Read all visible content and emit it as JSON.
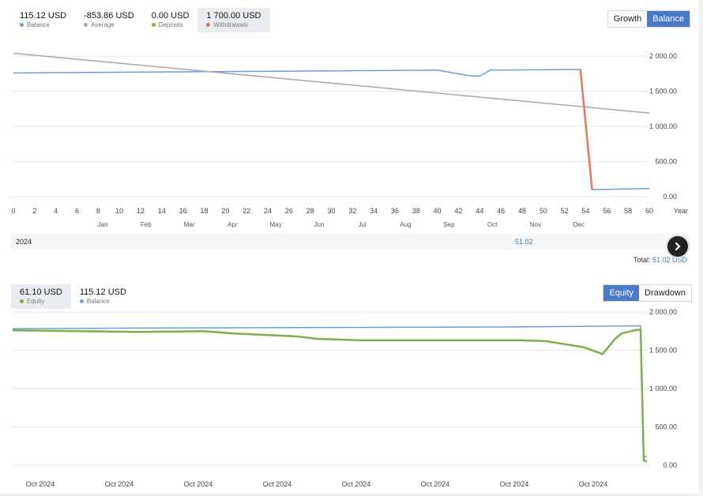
{
  "top_chart": {
    "legend": [
      {
        "value": "115.12 USD",
        "label": "Balance",
        "color": "#6a9edb",
        "active": false
      },
      {
        "value": "-853.86 USD",
        "label": "Average",
        "color": "#a8a8a8",
        "active": false
      },
      {
        "value": "0.00 USD",
        "label": "Deposits",
        "color": "#7ab04c",
        "active": false
      },
      {
        "value": "1 700.00 USD",
        "label": "Withdrawals",
        "color": "#e07a5f",
        "active": true
      }
    ],
    "toggle": {
      "growth": "Growth",
      "balance": "Balance",
      "selected": "Balance"
    },
    "year_label": "Year",
    "year_row": {
      "year": "2024",
      "value": "51.02"
    },
    "total": {
      "label": "Total:",
      "value": "51.02 USD"
    }
  },
  "bottom_chart": {
    "legend": [
      {
        "value": "61.10 USD",
        "label": "Equity",
        "color": "#7ab04c",
        "active": true
      },
      {
        "value": "115.12 USD",
        "label": "Balance",
        "color": "#6a9edb",
        "active": false
      }
    ],
    "toggle": {
      "equity": "Equity",
      "drawdown": "Drawdown",
      "selected": "Equity"
    }
  },
  "chart_data": [
    {
      "type": "line",
      "x_ticks": [
        "0",
        "2",
        "4",
        "6",
        "8",
        "10",
        "12",
        "14",
        "16",
        "18",
        "20",
        "22",
        "24",
        "26",
        "28",
        "30",
        "32",
        "34",
        "36",
        "38",
        "40",
        "42",
        "44",
        "46",
        "48",
        "50",
        "52",
        "54",
        "56",
        "58",
        "60"
      ],
      "month_labels": [
        "Jan",
        "Feb",
        "Mar",
        "Apr",
        "May",
        "Jun",
        "Jul",
        "Aug",
        "Sep",
        "Oct",
        "Nov",
        "Dec"
      ],
      "y_ticks": [
        "2 000.00",
        "1 500.00",
        "1 000.00",
        "500.00",
        "0.00"
      ],
      "xlim": [
        0,
        60
      ],
      "ylim": [
        0,
        2000
      ],
      "grid": true,
      "series": [
        {
          "name": "Balance",
          "color": "#6a9edb",
          "x": [
            0,
            20,
            40,
            43,
            44,
            45,
            46,
            53.5,
            54.6,
            60
          ],
          "y": [
            1760,
            1780,
            1800,
            1720,
            1715,
            1800,
            1800,
            1810,
            100,
            115
          ]
        },
        {
          "name": "Average",
          "color": "#a8a8a8",
          "x": [
            0,
            60
          ],
          "y": [
            2040,
            1190
          ]
        },
        {
          "name": "Withdrawals",
          "color": "#e07a5f",
          "x": [
            53.5,
            54.6
          ],
          "y": [
            1810,
            100
          ]
        }
      ]
    },
    {
      "type": "line",
      "x_tick_labels": [
        "Oct 2024",
        "Oct 2024",
        "Oct 2024",
        "Oct 2024",
        "Oct 2024",
        "Oct 2024",
        "Oct 2024",
        "Oct 2024"
      ],
      "y_ticks": [
        "2 000.00",
        "1 500.00",
        "1 000.00",
        "500.00",
        "0.00"
      ],
      "ylim": [
        0,
        2000
      ],
      "grid": true,
      "series": [
        {
          "name": "Balance",
          "color": "#6a9edb",
          "x": [
            0,
            0.2,
            0.4,
            0.6,
            0.8,
            0.99,
            0.995,
            1.0
          ],
          "y": [
            1780,
            1790,
            1795,
            1800,
            1805,
            1820,
            110,
            115
          ]
        },
        {
          "name": "Equity",
          "color": "#7ab04c",
          "x": [
            0,
            0.1,
            0.2,
            0.3,
            0.35,
            0.45,
            0.48,
            0.55,
            0.6,
            0.7,
            0.75,
            0.8,
            0.84,
            0.87,
            0.9,
            0.93,
            0.95,
            0.96,
            0.98,
            0.99,
            0.995,
            1.0
          ],
          "y": [
            1760,
            1750,
            1740,
            1750,
            1720,
            1680,
            1650,
            1630,
            1630,
            1630,
            1630,
            1630,
            1620,
            1580,
            1540,
            1450,
            1650,
            1720,
            1760,
            1770,
            60,
            50
          ]
        }
      ]
    }
  ]
}
